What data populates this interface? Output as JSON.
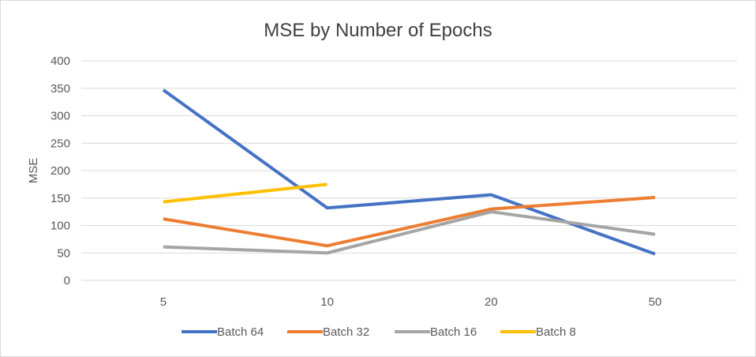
{
  "chart_data": {
    "type": "line",
    "title": "MSE by Number of Epochs",
    "xlabel": "",
    "ylabel": "MSE",
    "categories": [
      "5",
      "10",
      "20",
      "50"
    ],
    "ylim": [
      0,
      400
    ],
    "yticks": [
      0,
      50,
      100,
      150,
      200,
      250,
      300,
      350,
      400
    ],
    "grid": "horizontal",
    "legend": "bottom",
    "series": [
      {
        "name": "Batch 64",
        "color": "#4472C4",
        "values": [
          347,
          132,
          156,
          48
        ]
      },
      {
        "name": "Batch 32",
        "color": "#ED7D31",
        "values": [
          112,
          63,
          130,
          151
        ]
      },
      {
        "name": "Batch 16",
        "color": "#A5A5A5",
        "values": [
          61,
          50,
          125,
          84
        ]
      },
      {
        "name": "Batch 8",
        "color": "#FFC000",
        "values": [
          143,
          175,
          null,
          null
        ]
      }
    ]
  }
}
